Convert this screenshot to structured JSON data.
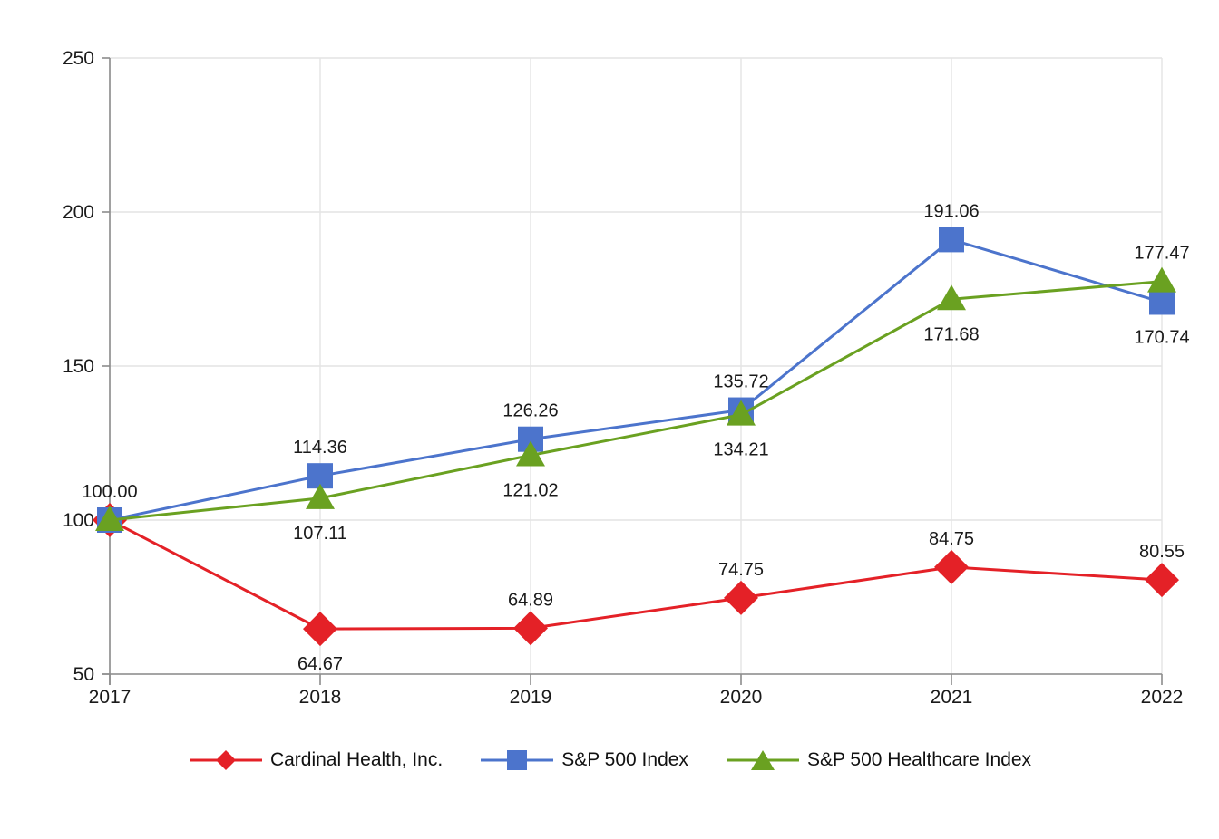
{
  "chart_data": {
    "type": "line",
    "title": "",
    "x": [
      2017,
      2018,
      2019,
      2020,
      2021,
      2022
    ],
    "series": [
      {
        "name": "Cardinal Health, Inc.",
        "marker": "diamond",
        "color": "#E42127",
        "values": [
          100.0,
          64.67,
          64.89,
          74.75,
          84.75,
          80.55
        ],
        "labels": [
          "",
          "64.67",
          "64.89",
          "74.75",
          "84.75",
          "80.55"
        ],
        "label_side": [
          "",
          "below",
          "above",
          "above",
          "above",
          "above"
        ]
      },
      {
        "name": "S&P 500 Index",
        "marker": "square",
        "color": "#4C74CC",
        "values": [
          100.0,
          114.36,
          126.26,
          135.72,
          191.06,
          170.74
        ],
        "labels": [
          "100.00",
          "114.36",
          "126.26",
          "135.72",
          "191.06",
          "170.74"
        ],
        "label_side": [
          "above",
          "above",
          "above",
          "above",
          "above",
          "below"
        ]
      },
      {
        "name": "S&P 500 Healthcare Index",
        "marker": "triangle",
        "color": "#6AA121",
        "values": [
          100.0,
          107.11,
          121.02,
          134.21,
          171.68,
          177.47
        ],
        "labels": [
          "",
          "107.11",
          "121.02",
          "134.21",
          "171.68",
          "177.47"
        ],
        "label_side": [
          "",
          "below",
          "below",
          "below",
          "below",
          "above"
        ]
      }
    ],
    "ylim": [
      50,
      250
    ],
    "yticks": [
      50,
      100,
      150,
      200,
      250
    ],
    "xtick_labels": [
      "2017",
      "2018",
      "2019",
      "2020",
      "2021",
      "2022"
    ],
    "grid": true,
    "legend_position": "bottom",
    "colors": {
      "background": "#FFFFFF",
      "axis": "#8C8C8C",
      "grid": "#E4E4E4",
      "text": "#1A1A1A"
    }
  }
}
